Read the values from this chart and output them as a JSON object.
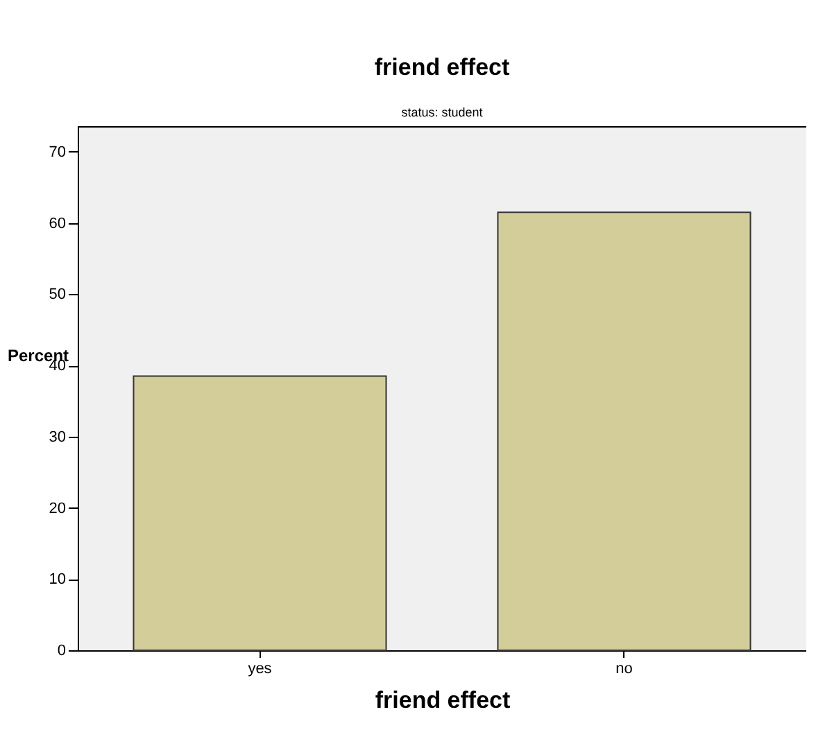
{
  "chart_data": {
    "type": "bar",
    "title": "friend effect",
    "subtitle": "status: student",
    "xlabel": "friend effect",
    "ylabel": "Percent",
    "categories": [
      "yes",
      "no"
    ],
    "values": [
      38.5,
      61.5
    ],
    "color": "#d3ce99",
    "ylim": [
      0,
      73.6
    ],
    "yticks": [
      0,
      10,
      20,
      30,
      40,
      50,
      60,
      70
    ],
    "grid": false
  }
}
